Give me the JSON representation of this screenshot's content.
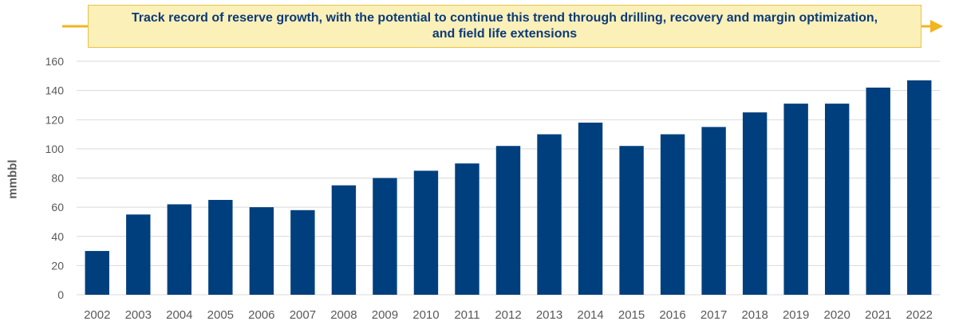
{
  "callout": {
    "text": "Track record of reserve growth, with the potential to continue this trend through drilling, recovery and margin optimization, and field life extensions"
  },
  "colors": {
    "bar": "#003f7d",
    "callout_fill": "#fbf0b8",
    "callout_border": "#e8c24a",
    "arrow": "#f2b51e",
    "grid": "#d9d9d9",
    "axis_text": "#595959"
  },
  "chart_data": {
    "type": "bar",
    "categories": [
      "2002",
      "2003",
      "2004",
      "2005",
      "2006",
      "2007",
      "2008",
      "2009",
      "2010",
      "2011",
      "2012",
      "2013",
      "2014",
      "2015",
      "2016",
      "2017",
      "2018",
      "2019",
      "2020",
      "2021",
      "2022"
    ],
    "values": [
      30,
      55,
      62,
      65,
      60,
      58,
      75,
      80,
      85,
      90,
      102,
      110,
      118,
      102,
      110,
      115,
      125,
      131,
      131,
      142,
      147
    ],
    "title": "",
    "xlabel": "",
    "ylabel": "mmbbl",
    "ylim": [
      0,
      160
    ],
    "yticks": [
      0,
      20,
      40,
      60,
      80,
      100,
      120,
      140,
      160
    ],
    "grid": true,
    "legend": "none"
  }
}
